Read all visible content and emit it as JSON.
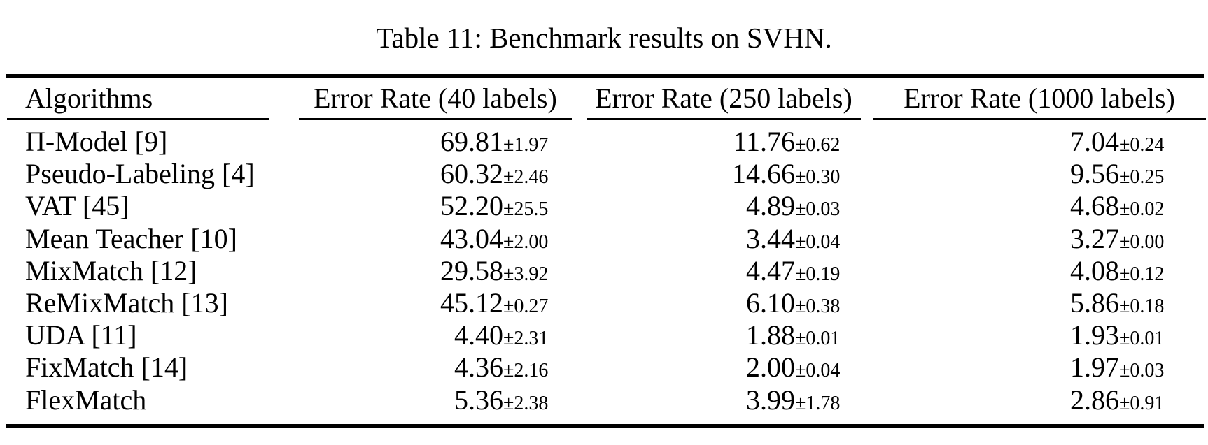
{
  "page": {
    "caption": "Table 11: Benchmark results on SVHN."
  },
  "table": {
    "headers": [
      "Algorithms",
      "Error Rate (40 labels)",
      "Error Rate (250 labels)",
      "Error Rate (1000 labels)"
    ],
    "rows": [
      {
        "algorithm": "Π-Model [9]",
        "e40": "69.81",
        "e40_std": "±1.97",
        "e250": "11.76",
        "e250_std": "±0.62",
        "e1000": "7.04",
        "e1000_std": "±0.24"
      },
      {
        "algorithm": "Pseudo-Labeling [4]",
        "e40": "60.32",
        "e40_std": "±2.46",
        "e250": "14.66",
        "e250_std": "±0.30",
        "e1000": "9.56",
        "e1000_std": "±0.25"
      },
      {
        "algorithm": "VAT [45]",
        "e40": "52.20",
        "e40_std": "±25.5",
        "e250": "4.89",
        "e250_std": "±0.03",
        "e1000": "4.68",
        "e1000_std": "±0.02"
      },
      {
        "algorithm": "Mean Teacher [10]",
        "e40": "43.04",
        "e40_std": "±2.00",
        "e250": "3.44",
        "e250_std": "±0.04",
        "e1000": "3.27",
        "e1000_std": "±0.00"
      },
      {
        "algorithm": "MixMatch [12]",
        "e40": "29.58",
        "e40_std": "±3.92",
        "e250": "4.47",
        "e250_std": "±0.19",
        "e1000": "4.08",
        "e1000_std": "±0.12"
      },
      {
        "algorithm": "ReMixMatch [13]",
        "e40": "45.12",
        "e40_std": "±0.27",
        "e250": "6.10",
        "e250_std": "±0.38",
        "e1000": "5.86",
        "e1000_std": "±0.18"
      },
      {
        "algorithm": "UDA [11]",
        "e40": "4.40",
        "e40_std": "±2.31",
        "e250": "1.88",
        "e250_std": "±0.01",
        "e1000": "1.93",
        "e1000_std": "±0.01"
      },
      {
        "algorithm": "FixMatch [14]",
        "e40": "4.36",
        "e40_std": "±2.16",
        "e250": "2.00",
        "e250_std": "±0.04",
        "e1000": "1.97",
        "e1000_std": "±0.03"
      },
      {
        "algorithm": "FlexMatch",
        "e40": "5.36",
        "e40_std": "±2.38",
        "e250": "3.99",
        "e250_std": "±1.78",
        "e1000": "2.86",
        "e1000_std": "±0.91"
      }
    ]
  },
  "colors": {
    "background": "#ffffff",
    "text": "#000000",
    "rule": "#000000"
  }
}
